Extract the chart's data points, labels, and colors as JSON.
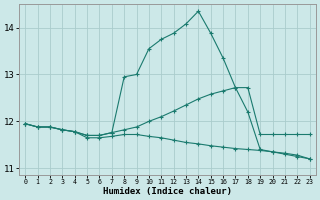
{
  "xlabel": "Humidex (Indice chaleur)",
  "background_color": "#cce8e8",
  "grid_color": "#aacccc",
  "line_color": "#1a7a6e",
  "xlim": [
    -0.5,
    23.5
  ],
  "ylim": [
    10.85,
    14.5
  ],
  "yticks": [
    11,
    12,
    13,
    14
  ],
  "xticks": [
    0,
    1,
    2,
    3,
    4,
    5,
    6,
    7,
    8,
    9,
    10,
    11,
    12,
    13,
    14,
    15,
    16,
    17,
    18,
    19,
    20,
    21,
    22,
    23
  ],
  "series_top": [
    11.95,
    11.88,
    11.88,
    11.82,
    11.78,
    11.7,
    11.7,
    11.76,
    12.95,
    13.0,
    13.55,
    13.75,
    13.88,
    14.08,
    14.35,
    13.88,
    13.35,
    12.72,
    12.72,
    11.72,
    11.72,
    11.72,
    11.72,
    11.72
  ],
  "series_mid": [
    11.95,
    11.88,
    11.88,
    11.82,
    11.78,
    11.7,
    11.7,
    11.76,
    11.82,
    11.88,
    12.0,
    12.1,
    12.22,
    12.35,
    12.48,
    12.58,
    12.65,
    12.72,
    12.2,
    11.4,
    11.35,
    11.3,
    11.25,
    11.2
  ],
  "series_bot": [
    11.95,
    11.88,
    11.88,
    11.82,
    11.78,
    11.65,
    11.65,
    11.68,
    11.72,
    11.72,
    11.68,
    11.65,
    11.6,
    11.55,
    11.52,
    11.48,
    11.45,
    11.42,
    11.4,
    11.38,
    11.35,
    11.32,
    11.28,
    11.2
  ]
}
